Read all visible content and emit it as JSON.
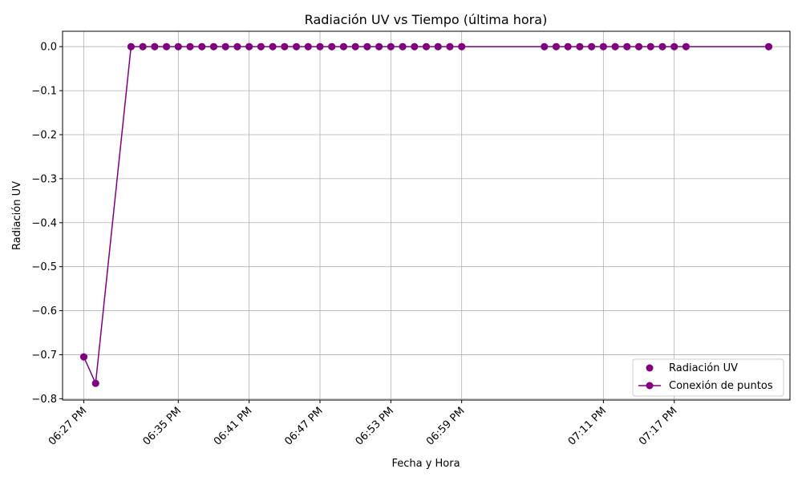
{
  "chart_data": {
    "type": "line",
    "title": "Radiación UV vs Tiempo (última hora)",
    "xlabel": "Fecha y Hora",
    "ylabel": "Radiación UV",
    "x_minutes": [
      27,
      28,
      31,
      32,
      33,
      34,
      35,
      36,
      37,
      38,
      39,
      40,
      41,
      42,
      43,
      44,
      45,
      46,
      47,
      48,
      49,
      50,
      51,
      52,
      53,
      54,
      55,
      56,
      57,
      58,
      59,
      66,
      67,
      68,
      69,
      70,
      71,
      72,
      73,
      74,
      75,
      76,
      77,
      78,
      85
    ],
    "x_tick_minutes": [
      27,
      35,
      41,
      47,
      53,
      59,
      71,
      77
    ],
    "x_tick_labels": [
      "06:27 PM",
      "06:35 PM",
      "06:41 PM",
      "06:47 PM",
      "06:53 PM",
      "06:59 PM",
      "07:11 PM",
      "07:17 PM"
    ],
    "series": [
      {
        "name": "Radiación UV",
        "kind": "scatter",
        "color": "#800080",
        "values": [
          -0.705,
          -0.765,
          0,
          0,
          0,
          0,
          0,
          0,
          0,
          0,
          0,
          0,
          0,
          0,
          0,
          0,
          0,
          0,
          0,
          0,
          0,
          0,
          0,
          0,
          0,
          0,
          0,
          0,
          0,
          0,
          0,
          0,
          0,
          0,
          0,
          0,
          0,
          0,
          0,
          0,
          0,
          0,
          0,
          0,
          0
        ]
      },
      {
        "name": "Conexión de puntos",
        "kind": "line-with-markers",
        "color": "#800080",
        "values": [
          -0.705,
          -0.765,
          0,
          0,
          0,
          0,
          0,
          0,
          0,
          0,
          0,
          0,
          0,
          0,
          0,
          0,
          0,
          0,
          0,
          0,
          0,
          0,
          0,
          0,
          0,
          0,
          0,
          0,
          0,
          0,
          0,
          0,
          0,
          0,
          0,
          0,
          0,
          0,
          0,
          0,
          0,
          0,
          0,
          0,
          0
        ]
      }
    ],
    "y_ticks": [
      0.0,
      -0.1,
      -0.2,
      -0.3,
      -0.4,
      -0.5,
      -0.6,
      -0.7,
      -0.8
    ],
    "y_tick_labels": [
      "0.0",
      "−0.1",
      "−0.2",
      "−0.3",
      "−0.4",
      "−0.5",
      "−0.6",
      "−0.7",
      "−0.8"
    ],
    "ylim": [
      -0.803,
      0.035
    ],
    "xlim_minutes": [
      25.2,
      86.8
    ],
    "grid": true,
    "legend_position": "lower-right"
  }
}
